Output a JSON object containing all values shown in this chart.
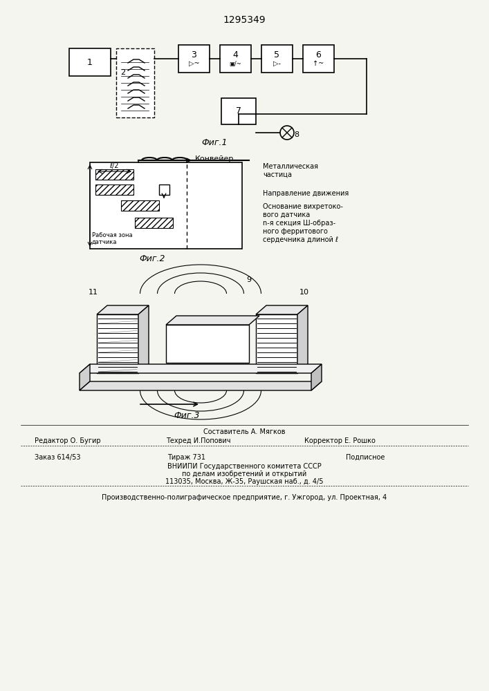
{
  "title": "1295349",
  "bg_color": "#f5f5f0",
  "fig_width": 7.07,
  "fig_height": 10.0,
  "footer_lines": [
    "Составитель А. Мягков",
    "Редактор О. Бугир      Техред И.Попович      Корректор Е. Рошко",
    "Заказ 614/53      Тираж 731      Подписное",
    "ВНИИПИ Государственного комитета СССР",
    "по делам изобретений и открытий",
    "113035, Москва, Ж-35, Раушская наб., д. 4/5",
    "Производственно-полиграфическое предприятие, г. Ужгород, ул. Проектная, 4"
  ]
}
